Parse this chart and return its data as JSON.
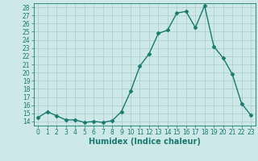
{
  "x": [
    0,
    1,
    2,
    3,
    4,
    5,
    6,
    7,
    8,
    9,
    10,
    11,
    12,
    13,
    14,
    15,
    16,
    17,
    18,
    19,
    20,
    21,
    22,
    23
  ],
  "y": [
    14.5,
    15.2,
    14.7,
    14.2,
    14.2,
    13.9,
    14.0,
    13.9,
    14.1,
    15.2,
    17.7,
    20.8,
    22.3,
    24.8,
    25.2,
    27.3,
    27.5,
    25.5,
    28.2,
    23.2,
    21.8,
    19.8,
    16.2,
    14.8
  ],
  "line_color": "#1a7a6e",
  "marker": "D",
  "markersize": 2.5,
  "linewidth": 1.0,
  "bg_color": "#cce8e8",
  "grid_color": "#aacccc",
  "xlabel": "Humidex (Indice chaleur)",
  "xlim": [
    -0.5,
    23.5
  ],
  "ylim": [
    13.5,
    28.5
  ],
  "yticks": [
    14,
    15,
    16,
    17,
    18,
    19,
    20,
    21,
    22,
    23,
    24,
    25,
    26,
    27,
    28
  ],
  "xticks": [
    0,
    1,
    2,
    3,
    4,
    5,
    6,
    7,
    8,
    9,
    10,
    11,
    12,
    13,
    14,
    15,
    16,
    17,
    18,
    19,
    20,
    21,
    22,
    23
  ],
  "tick_fontsize": 5.5,
  "xlabel_fontsize": 7.0,
  "tick_color": "#1a7a6e",
  "axis_color": "#1a7a6e"
}
